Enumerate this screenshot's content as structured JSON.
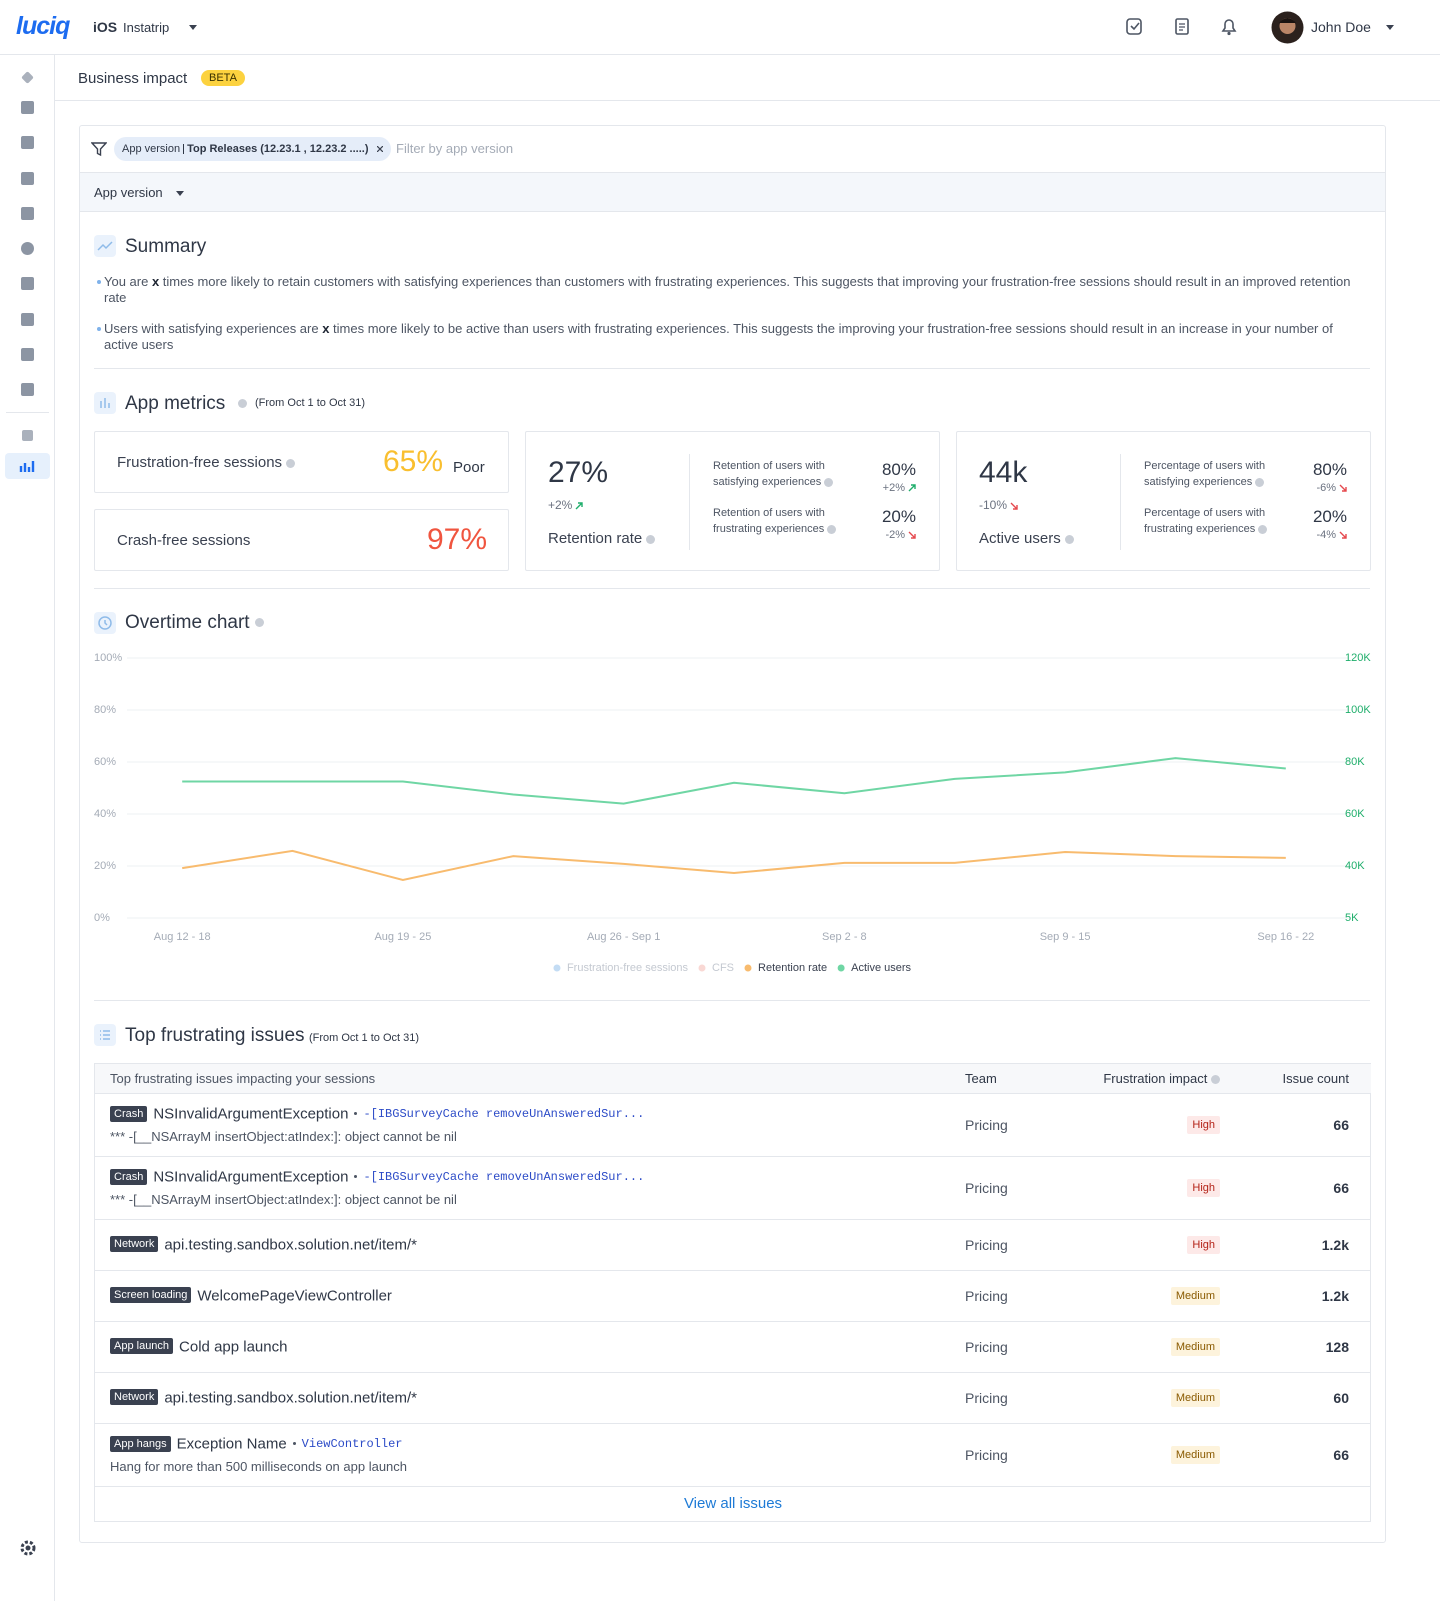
{
  "header": {
    "logo": "luciq",
    "platform": "iOS",
    "app": "Instatrip",
    "user": "John Doe"
  },
  "page": {
    "title": "Business impact",
    "badge": "BETA"
  },
  "filter": {
    "chip_key": "App version",
    "chip_value": "Top Releases (12.23.1 , 12.23.2 .....)",
    "placeholder": "Filter by app version",
    "group_by": "App version"
  },
  "summary": {
    "title": "Summary",
    "bullets": [
      {
        "before": "You are ",
        "emphasis": "x",
        "after": " times more likely to retain customers with satisfying experiences than customers with frustrating experiences. This suggests that improving your frustration-free sessions should result in an improved retention rate"
      },
      {
        "before": "Users with satisfying experiences are ",
        "emphasis": "x",
        "after": " times more likely to be active than users with frustrating experiences. This suggests the improving your frustration-free sessions should result in an increase in your number of active users"
      }
    ]
  },
  "metrics": {
    "title": "App metrics",
    "period": "(From Oct 1 to Oct 31)",
    "frustration_free": {
      "label": "Frustration-free sessions",
      "value": "65%",
      "rating": "Poor"
    },
    "crash_free": {
      "label": "Crash-free sessions",
      "value": "97%"
    },
    "retention": {
      "value": "27%",
      "change": "+2%",
      "label": "Retention rate",
      "rows": [
        {
          "label": "Retention of users with satisfying experiences",
          "value": "80%",
          "change": "+2%"
        },
        {
          "label": "Retention of users with frustrating experiences",
          "value": "20%",
          "change": "-2%"
        }
      ]
    },
    "active": {
      "value": "44k",
      "change": "-10%",
      "label": "Active users",
      "rows": [
        {
          "label": "Percentage of users with satisfying experiences",
          "value": "80%",
          "change": "-6%"
        },
        {
          "label": "Percentage of users with frustrating experiences",
          "value": "20%",
          "change": "-4%"
        }
      ]
    }
  },
  "chart_data": {
    "type": "line",
    "title": "Overtime chart",
    "categories": [
      "Aug 12 - 18",
      null,
      "Aug 19 - 25",
      null,
      "Aug 26 - Sep 1",
      null,
      "Sep 2 - 8",
      null,
      "Sep 9 - 15",
      null,
      "Sep 16 - 22"
    ],
    "series": [
      {
        "name": "Frustration-free sessions",
        "color": "#a9cdf0",
        "hidden": true,
        "values": [
          null,
          null,
          null,
          null,
          null,
          null,
          null,
          null,
          null,
          null,
          null
        ]
      },
      {
        "name": "CFS",
        "color": "#f6c8c2",
        "hidden": true,
        "values": [
          null,
          null,
          null,
          null,
          null,
          null,
          null,
          null,
          null,
          null,
          null
        ]
      },
      {
        "name": "Retention rate",
        "color": "#f8bb6e",
        "values": [
          19.2,
          25.8,
          14.6,
          23.8,
          20.8,
          17.3,
          21.2,
          21.2,
          25.4,
          23.8,
          23.1
        ]
      },
      {
        "name": "Active users",
        "color": "#6fd6a4",
        "axis": "y2",
        "values": [
          72500,
          72500,
          72500,
          67500,
          64000,
          72000,
          68000,
          73500,
          76000,
          81500,
          77500
        ]
      }
    ],
    "ylim": [
      0,
      100
    ],
    "yticks": [
      {
        "value": 0,
        "label": "0%"
      },
      {
        "value": 20,
        "label": "20%"
      },
      {
        "value": 40,
        "label": "40%"
      },
      {
        "value": 60,
        "label": "60%"
      },
      {
        "value": 80,
        "label": "80%"
      },
      {
        "value": 100,
        "label": "100%"
      }
    ],
    "y2lim": [
      5000,
      120000
    ],
    "y2ticks": [
      {
        "value": 5000,
        "label": "5K"
      },
      {
        "value": 40000,
        "label": "40K"
      },
      {
        "value": 60000,
        "label": "60K"
      },
      {
        "value": 80000,
        "label": "80K"
      },
      {
        "value": 100000,
        "label": "100K"
      },
      {
        "value": 120000,
        "label": "120K"
      }
    ],
    "grid": true,
    "legend": "bottom"
  },
  "issues": {
    "title": "Top frustrating issues",
    "period": "(From Oct 1 to Oct 31)",
    "columns": [
      "Top frustrating issues impacting your sessions",
      "Team",
      "Frustration impact",
      "Issue count"
    ],
    "rows": [
      {
        "tag": "Crash",
        "title": "NSInvalidArgumentException",
        "code": "-[IBGSurveyCache removeUnAnsweredSur...",
        "detail": "*** -[__NSArrayM insertObject:atIndex:]: object cannot be nil",
        "team": "Pricing",
        "impact": "High",
        "count": "66"
      },
      {
        "tag": "Crash",
        "title": "NSInvalidArgumentException",
        "code": "-[IBGSurveyCache removeUnAnsweredSur...",
        "detail": "*** -[__NSArrayM insertObject:atIndex:]: object cannot be nil",
        "team": "Pricing",
        "impact": "High",
        "count": "66"
      },
      {
        "tag": "Network",
        "title": "api.testing.sandbox.solution.net/item/*",
        "team": "Pricing",
        "impact": "High",
        "count": "1.2k"
      },
      {
        "tag": "Screen loading",
        "title": "WelcomePageViewController",
        "team": "Pricing",
        "impact": "Medium",
        "count": "1.2k"
      },
      {
        "tag": "App launch",
        "title": "Cold app launch",
        "team": "Pricing",
        "impact": "Medium",
        "count": "128"
      },
      {
        "tag": "Network",
        "title": "api.testing.sandbox.solution.net/item/*",
        "team": "Pricing",
        "impact": "Medium",
        "count": "60"
      },
      {
        "tag": "App hangs",
        "title": "Exception Name",
        "code": "ViewController",
        "detail": "Hang for more than 500 milliseconds on app launch",
        "team": "Pricing",
        "impact": "Medium",
        "count": "66"
      }
    ],
    "footer": "View all issues"
  }
}
